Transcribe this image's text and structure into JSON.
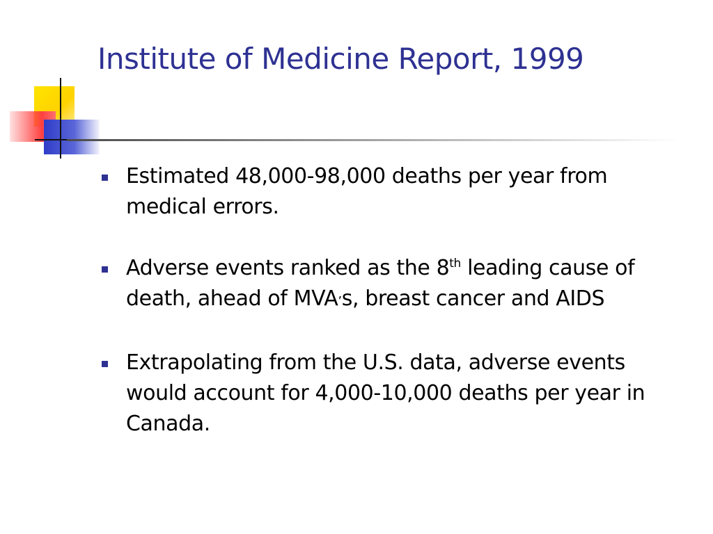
{
  "slide": {
    "title": "Institute of Medicine Report, 1999",
    "bullets": [
      {
        "text": "Estimated 48,000-98,000 deaths per year from medical errors."
      },
      {
        "text_before": "Adverse events ranked as the 8",
        "superscript": "th",
        "text_mid": " leading cause of death, ahead of MVA",
        "apostrophe": "’",
        "text_after": "s, breast cancer and AIDS"
      },
      {
        "text": "Extrapolating from the U.S. data, adverse events would account for 4,000-10,000 deaths per year in Canada."
      }
    ]
  },
  "colors": {
    "title": "#2e3192",
    "bullet_marker": "#2e3192",
    "body_text": "#000000",
    "logo_yellow": "#ffd200",
    "logo_red": "#ff4040",
    "logo_blue": "#2f3dc8"
  },
  "icons": {
    "logo": "decorative-squares-logo",
    "bullet": "square-bullet"
  }
}
